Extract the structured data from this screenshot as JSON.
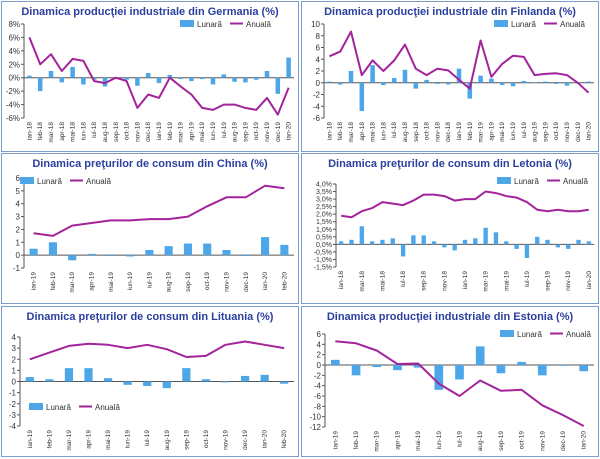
{
  "colors": {
    "title": "#2b3f9e",
    "bar": "#4da6e8",
    "line": "#a3249a",
    "axis": "#555555",
    "tick": "#333333"
  },
  "chart_data": [
    {
      "id": "germany",
      "type": "bar+line",
      "title": "Dinamica producţiei industriale din Germania (%)",
      "legend": {
        "bar": "Lunară",
        "line": "Anuală",
        "position": "top-right"
      },
      "categories": [
        "ian-18",
        "feb-18",
        "mar-18",
        "apr-18",
        "mai-18",
        "iun-18",
        "iul-18",
        "aug-18",
        "sep-18",
        "oct-18",
        "nov-18",
        "dec-18",
        "ian-19",
        "feb-19",
        "mar-19",
        "apr-19",
        "mai-19",
        "iun-19",
        "iul-19",
        "aug-19",
        "sep-19",
        "oct-19",
        "nov-19",
        "dec-19",
        "ian-20"
      ],
      "tick_labels": [
        "ian-18",
        "feb-18",
        "mar-18",
        "apr-18",
        "mai-18",
        "iun-18",
        "iul-18",
        "aug-18",
        "sep-18",
        "oct-18",
        "nov-18",
        "dec-18",
        "ian-19",
        "feb-19",
        "mar-19",
        "apr-19",
        "mai-19",
        "iun-19",
        "iul-19",
        "aug-19",
        "sep-19",
        "oct-19",
        "nov-19",
        "dec-19",
        "ian-20"
      ],
      "yticks": [
        8,
        6,
        4,
        2,
        0,
        -2,
        -4,
        -6
      ],
      "ytick_labels": [
        "8%",
        "6%",
        "4%",
        "2%",
        "0%",
        "-2%",
        "-4%",
        "-6%"
      ],
      "ylim": [
        -6,
        8
      ],
      "bars": [
        0.3,
        -2.0,
        1.0,
        -0.7,
        1.6,
        -1.0,
        -0.3,
        -1.3,
        -0.1,
        -0.3,
        -1.2,
        0.7,
        -0.8,
        0.4,
        -0.2,
        -0.5,
        -0.2,
        -1.0,
        0.5,
        -0.6,
        -0.7,
        -0.3,
        1.0,
        -2.4,
        3.0
      ],
      "line": [
        6.0,
        2.0,
        3.5,
        1.0,
        2.8,
        2.5,
        -0.5,
        -0.8,
        0.0,
        -0.5,
        -4.5,
        -2.5,
        -3.0,
        0.0,
        -1.3,
        -2.5,
        -4.5,
        -4.8,
        -4.0,
        -4.0,
        -4.5,
        -4.8,
        -3.0,
        -5.5,
        -1.5
      ]
    },
    {
      "id": "finland",
      "type": "bar+line",
      "title": "Dinamica producţiei industriale din Finlanda (%)",
      "legend": {
        "bar": "Lunară",
        "line": "Anuală",
        "position": "top-right"
      },
      "categories": [
        "ian-18",
        "feb-18",
        "mar-18",
        "apr-18",
        "mai-18",
        "iun-18",
        "iul-18",
        "aug-18",
        "sep-18",
        "oct-18",
        "nov-18",
        "dec-18",
        "ian-19",
        "feb-19",
        "mar-19",
        "apr-19",
        "mai-19",
        "iun-19",
        "iul-19",
        "aug-19",
        "sep-19",
        "oct-19",
        "nov-19",
        "dec-19",
        "ian-20"
      ],
      "tick_labels": [
        "ian-18",
        "feb-18",
        "mar-18",
        "apr-18",
        "mai-18",
        "iun-18",
        "iul-18",
        "aug-18",
        "sep-18",
        "oct-18",
        "nov-18",
        "dec-18",
        "ian-19",
        "feb-19",
        "mar-19",
        "apr-19",
        "mai-19",
        "iun-19",
        "iul-19",
        "aug-19",
        "sep-19",
        "oct-19",
        "nov-19",
        "dec-19",
        "ian-20"
      ],
      "yticks": [
        10,
        8,
        6,
        4,
        2,
        0,
        -2,
        -4,
        -6
      ],
      "ytick_labels": [
        "10",
        "8",
        "6",
        "4",
        "2",
        "0",
        "-2",
        "-4",
        "-6"
      ],
      "ylim": [
        -6,
        10
      ],
      "bars": [
        0.2,
        -0.3,
        2.0,
        -4.8,
        3.0,
        -0.4,
        0.8,
        2.2,
        -1.0,
        0.5,
        -0.2,
        -0.3,
        2.4,
        -2.7,
        1.2,
        0.7,
        -0.4,
        -0.6,
        0.3,
        0.1,
        0.2,
        -0.2,
        -0.5,
        0.0,
        0.2
      ],
      "line": [
        4.5,
        5.3,
        8.7,
        1.3,
        3.8,
        2.0,
        3.8,
        6.5,
        2.4,
        1.3,
        2.4,
        2.1,
        0.5,
        -1.0,
        7.2,
        1.0,
        3.2,
        4.6,
        4.4,
        1.3,
        1.5,
        1.6,
        1.3,
        0.0,
        -1.7
      ]
    },
    {
      "id": "china",
      "type": "bar+line",
      "title": "Dinamica preţurilor de consum din China (%)",
      "legend": {
        "bar": "Lunară",
        "line": "Anuală",
        "position": "top-left"
      },
      "categories": [
        "ian-19",
        "feb-19",
        "mar-19",
        "apr-19",
        "mai-19",
        "iun-19",
        "iul-19",
        "aug-19",
        "sep-19",
        "oct-19",
        "nov-19",
        "dec-19",
        "ian-20",
        "feb-20"
      ],
      "tick_labels": [
        "ian-19",
        "feb-19",
        "mar-19",
        "apr-19",
        "mai-19",
        "iun-19",
        "iul-19",
        "aug-19",
        "sep-19",
        "oct-19",
        "nov-19",
        "dec-19",
        "ian-20",
        "feb-20"
      ],
      "yticks": [
        6,
        5,
        4,
        3,
        2,
        1,
        0,
        -1
      ],
      "ytick_labels": [
        "6",
        "5",
        "4",
        "3",
        "2",
        "1",
        "0",
        "-1"
      ],
      "ylim": [
        -1,
        6
      ],
      "bars": [
        0.5,
        1.0,
        -0.4,
        0.1,
        0.0,
        -0.1,
        0.4,
        0.7,
        0.9,
        0.9,
        0.4,
        0.0,
        1.4,
        0.8
      ],
      "line": [
        1.7,
        1.5,
        2.3,
        2.5,
        2.7,
        2.7,
        2.8,
        2.8,
        3.0,
        3.8,
        4.5,
        4.5,
        5.4,
        5.2
      ]
    },
    {
      "id": "latvia",
      "type": "bar+line",
      "title": "Dinamica preţurilor de consum din Letonia (%)",
      "legend": {
        "bar": "Lunară",
        "line": "Anuală",
        "position": "top-right"
      },
      "categories": [
        "ian-18",
        "feb-18",
        "mar-18",
        "apr-18",
        "mai-18",
        "iun-18",
        "iul-18",
        "aug-18",
        "sep-18",
        "oct-18",
        "nov-18",
        "dec-18",
        "ian-19",
        "feb-19",
        "mar-19",
        "apr-19",
        "mai-19",
        "iun-19",
        "iul-19",
        "aug-19",
        "sep-19",
        "oct-19",
        "nov-19",
        "dec-19",
        "ian-20"
      ],
      "tick_labels": [
        "ian-18",
        "",
        "mar-18",
        "",
        "mai-18",
        "",
        "iul-18",
        "",
        "sep-18",
        "",
        "nov-18",
        "",
        "ian-19",
        "",
        "mar-19",
        "",
        "mai-19",
        "",
        "iul-19",
        "",
        "sep-19",
        "",
        "nov-19",
        "",
        "ian-20"
      ],
      "yticks": [
        4.0,
        3.5,
        3.0,
        2.5,
        2.0,
        1.5,
        1.0,
        0.5,
        0.0,
        -0.5,
        -1.0,
        -1.5
      ],
      "ytick_labels": [
        "4,0%",
        "3,5%",
        "3,0%",
        "2,5%",
        "2,0%",
        "1,5%",
        "1,0%",
        "0,5%",
        "0,0%",
        "-0,5%",
        "-1,0%",
        "-1,5%"
      ],
      "ylim": [
        -1.5,
        4.0
      ],
      "bars": [
        0.2,
        0.3,
        1.2,
        0.2,
        0.3,
        0.4,
        -0.8,
        0.6,
        0.6,
        0.2,
        -0.2,
        -0.4,
        0.3,
        0.4,
        1.1,
        0.8,
        0.2,
        -0.3,
        -0.9,
        0.5,
        0.3,
        -0.2,
        -0.3,
        0.3,
        0.2
      ],
      "line": [
        1.9,
        1.8,
        2.2,
        2.4,
        2.8,
        2.7,
        2.6,
        2.9,
        3.3,
        3.3,
        3.2,
        2.9,
        3.0,
        3.0,
        3.5,
        3.4,
        3.2,
        3.1,
        2.8,
        2.3,
        2.2,
        2.3,
        2.2,
        2.2,
        2.3
      ]
    },
    {
      "id": "lithuania",
      "type": "bar+line",
      "title": "Dinamica preţurilor de consum din Lituania (%)",
      "legend": {
        "bar": "Lunară",
        "line": "Anuală",
        "position": "bottom-left"
      },
      "categories": [
        "ian-19",
        "feb-19",
        "mar-19",
        "apr-19",
        "mai-19",
        "iun-19",
        "iul-19",
        "aug-19",
        "sep-19",
        "oct-19",
        "nov-19",
        "dec-19",
        "ian-20",
        "feb-20"
      ],
      "tick_labels": [
        "ian-19",
        "feb-19",
        "mar-19",
        "apr-19",
        "mai-19",
        "iun-19",
        "iul-19",
        "aug-19",
        "sep-19",
        "oct-19",
        "nov-19",
        "dec-19",
        "ian-20",
        "feb-20"
      ],
      "yticks": [
        4,
        3,
        2,
        1,
        0,
        -1,
        -2,
        -3,
        -4
      ],
      "ytick_labels": [
        "4",
        "3",
        "2",
        "1",
        "0",
        "-1",
        "-2",
        "-3",
        "-4"
      ],
      "ylim": [
        -4,
        4
      ],
      "bars": [
        0.4,
        0.2,
        1.2,
        1.2,
        0.3,
        -0.3,
        -0.4,
        -0.6,
        1.2,
        0.2,
        0.0,
        0.5,
        0.6,
        -0.2
      ],
      "line": [
        2.0,
        2.6,
        3.2,
        3.4,
        3.3,
        3.0,
        3.3,
        2.9,
        2.2,
        2.3,
        3.3,
        3.6,
        3.3,
        3.0
      ]
    },
    {
      "id": "estonia",
      "type": "bar+line",
      "title": "Dinamica producţiei industriale din Estonia (%)",
      "legend": {
        "bar": "Lunară",
        "line": "Anuală",
        "position": "top-right"
      },
      "categories": [
        "ian-19",
        "feb-19",
        "mar-19",
        "apr-19",
        "mai-19",
        "iun-19",
        "iul-19",
        "aug-19",
        "sep-19",
        "oct-19",
        "nov-19",
        "dec-19",
        "ian-20"
      ],
      "tick_labels": [
        "ian-19",
        "feb-19",
        "mar-19",
        "apr-19",
        "mai-19",
        "iun-19",
        "iul-19",
        "aug-19",
        "sep-19",
        "oct-19",
        "nov-19",
        "dec-19",
        "ian-20"
      ],
      "yticks": [
        6,
        4,
        2,
        0,
        -2,
        -4,
        -6,
        -8,
        -10,
        -12
      ],
      "ytick_labels": [
        "6",
        "4",
        "2",
        "0",
        "-2",
        "-4",
        "-6",
        "-8",
        "-10",
        "-12"
      ],
      "ylim": [
        -12,
        6
      ],
      "bars": [
        1.0,
        -2.0,
        -0.4,
        -1.0,
        -0.5,
        -4.8,
        -2.8,
        3.6,
        -1.6,
        0.6,
        -2.0,
        -0.1,
        -1.2
      ],
      "line": [
        4.6,
        4.2,
        2.8,
        0.2,
        0.3,
        -3.6,
        -6.0,
        -3.0,
        -5.0,
        -4.8,
        -7.8,
        -9.7,
        -11.8
      ]
    }
  ]
}
